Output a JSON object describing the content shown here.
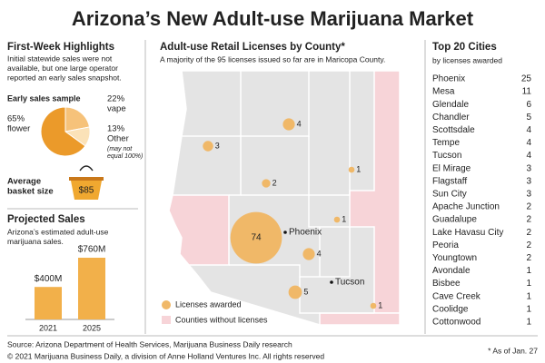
{
  "title": "Arizona’s New Adult-use Marijuana Market",
  "highlights": {
    "heading": "First-Week Highlights",
    "text": [
      "Initial statewide sales were not",
      "available, but one large operator",
      "reported an early sales snapshot."
    ],
    "basket_label": [
      "Average",
      "basket size"
    ],
    "basket_value": "$85"
  },
  "chart_data": [
    {
      "type": "pie",
      "title": "Early sales sample",
      "categories": [
        "vape",
        "Other",
        "flower"
      ],
      "values": [
        22,
        13,
        65
      ],
      "value_labels": [
        "22%",
        "13%",
        "65%"
      ],
      "colors": [
        "#f6c27a",
        "#fbe2b8",
        "#eb9a2a"
      ],
      "note": [
        "(may not",
        "equal 100%)"
      ]
    },
    {
      "type": "bar",
      "title": "Projected Sales",
      "subtitle": [
        "Arizona’s estimated adult-use",
        "marijuana sales."
      ],
      "categories": [
        "2021",
        "2025"
      ],
      "values": [
        400,
        760
      ],
      "value_labels": [
        "$400M",
        "$760M"
      ],
      "color": "#f2b04a"
    },
    {
      "type": "bubble-map",
      "title": "Adult-use Retail Licenses by County*",
      "subtitle": "A majority of the 95 licenses issued so far are in Maricopa County.",
      "values": [
        74,
        4,
        3,
        2,
        1,
        1,
        4,
        5,
        1
      ],
      "color": "#f0b868",
      "cities": [
        "Phoenix",
        "Tucson"
      ],
      "legend": [
        "Licenses awarded",
        "Counties without licenses"
      ],
      "empty_color": "#f7d4d8"
    }
  ],
  "cities": {
    "title": "Top 20 Cities",
    "subtitle": "by licenses awarded",
    "rows": [
      [
        "Phoenix",
        25
      ],
      [
        "Mesa",
        11
      ],
      [
        "Glendale",
        6
      ],
      [
        "Chandler",
        5
      ],
      [
        "Scottsdale",
        4
      ],
      [
        "Tempe",
        4
      ],
      [
        "Tucson",
        4
      ],
      [
        "El Mirage",
        3
      ],
      [
        "Flagstaff",
        3
      ],
      [
        "Sun City",
        3
      ],
      [
        "Apache Junction",
        2
      ],
      [
        "Guadalupe",
        2
      ],
      [
        "Lake Havasu City",
        2
      ],
      [
        "Peoria",
        2
      ],
      [
        "Youngtown",
        2
      ],
      [
        "Avondale",
        1
      ],
      [
        "Bisbee",
        1
      ],
      [
        "Cave Creek",
        1
      ],
      [
        "Coolidge",
        1
      ],
      [
        "Cottonwood",
        1
      ]
    ]
  },
  "footer": {
    "source": "Source: Arizona Department of Health Services, Marijuana Business Daily research",
    "copyright": "© 2021 Marijuana Business Daily, a division of Anne Holland Ventures Inc. All rights reserved",
    "note": "* As of Jan. 27"
  }
}
